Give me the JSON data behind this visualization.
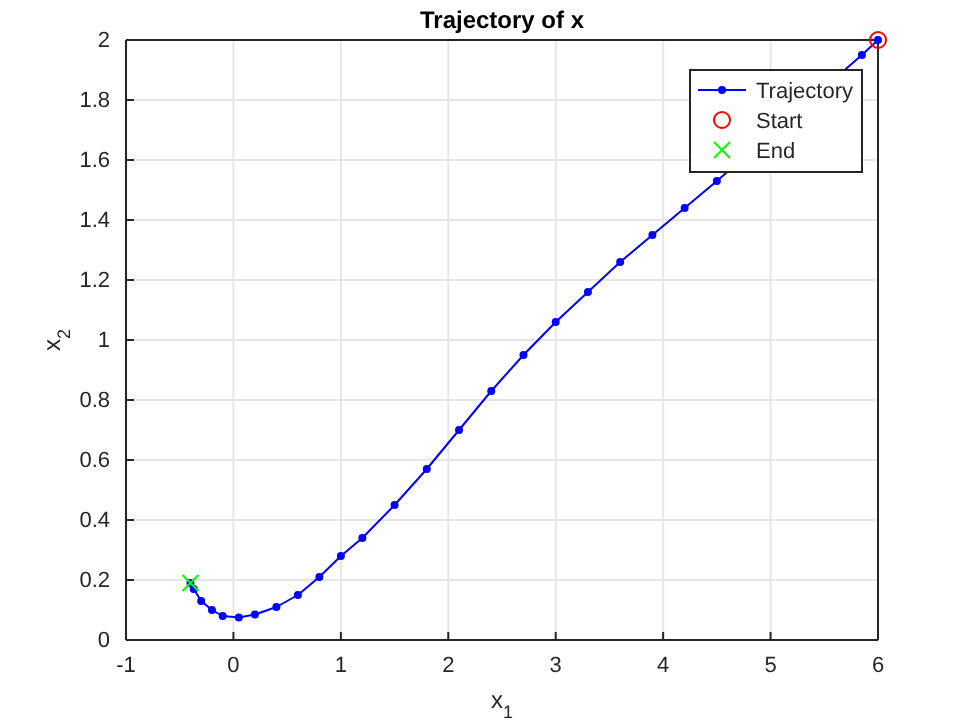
{
  "chart_data": {
    "type": "line",
    "title": "Trajectory of x",
    "xlabel": "x$_{1}$",
    "ylabel": "x$_{2}$",
    "xlim": [
      -1,
      6
    ],
    "xticks": [
      -1,
      0,
      1,
      2,
      3,
      4,
      5,
      6
    ],
    "ylim": [
      0,
      2
    ],
    "yticks": [
      0,
      0.2,
      0.4,
      0.6,
      0.8,
      1,
      1.2,
      1.4,
      1.6,
      1.8,
      2
    ],
    "grid": true,
    "legend": "top right",
    "series": [
      {
        "name": "Trajectory",
        "color": "#0000ff",
        "marker": "circle",
        "line_style": "solid",
        "x": [
          6,
          5.85,
          5.4,
          5.1,
          4.8,
          4.5,
          4.2,
          3.9,
          3.6,
          3.3,
          3.0,
          2.7,
          2.4,
          2.1,
          1.8,
          1.5,
          1.2,
          1.0,
          0.8,
          0.6,
          0.4,
          0.2,
          0.05,
          -0.1,
          -0.2,
          -0.3,
          -0.37,
          -0.4
        ],
        "values": [
          2,
          1.95,
          null,
          null,
          null,
          1.53,
          1.44,
          1.35,
          1.26,
          1.16,
          1.06,
          0.95,
          0.83,
          0.7,
          0.57,
          0.45,
          0.34,
          0.28,
          0.21,
          0.15,
          0.11,
          0.085,
          0.075,
          0.08,
          0.1,
          0.13,
          0.17,
          0.19
        ]
      },
      {
        "name": "Start",
        "type": "scatter",
        "color": "#ff0000",
        "marker": "circle",
        "x": [
          6
        ],
        "values": [
          2
        ]
      },
      {
        "name": "End",
        "type": "scatter",
        "color": "#00ff00",
        "marker": "cross",
        "x": [
          -0.4
        ],
        "values": [
          0.19
        ]
      }
    ]
  }
}
